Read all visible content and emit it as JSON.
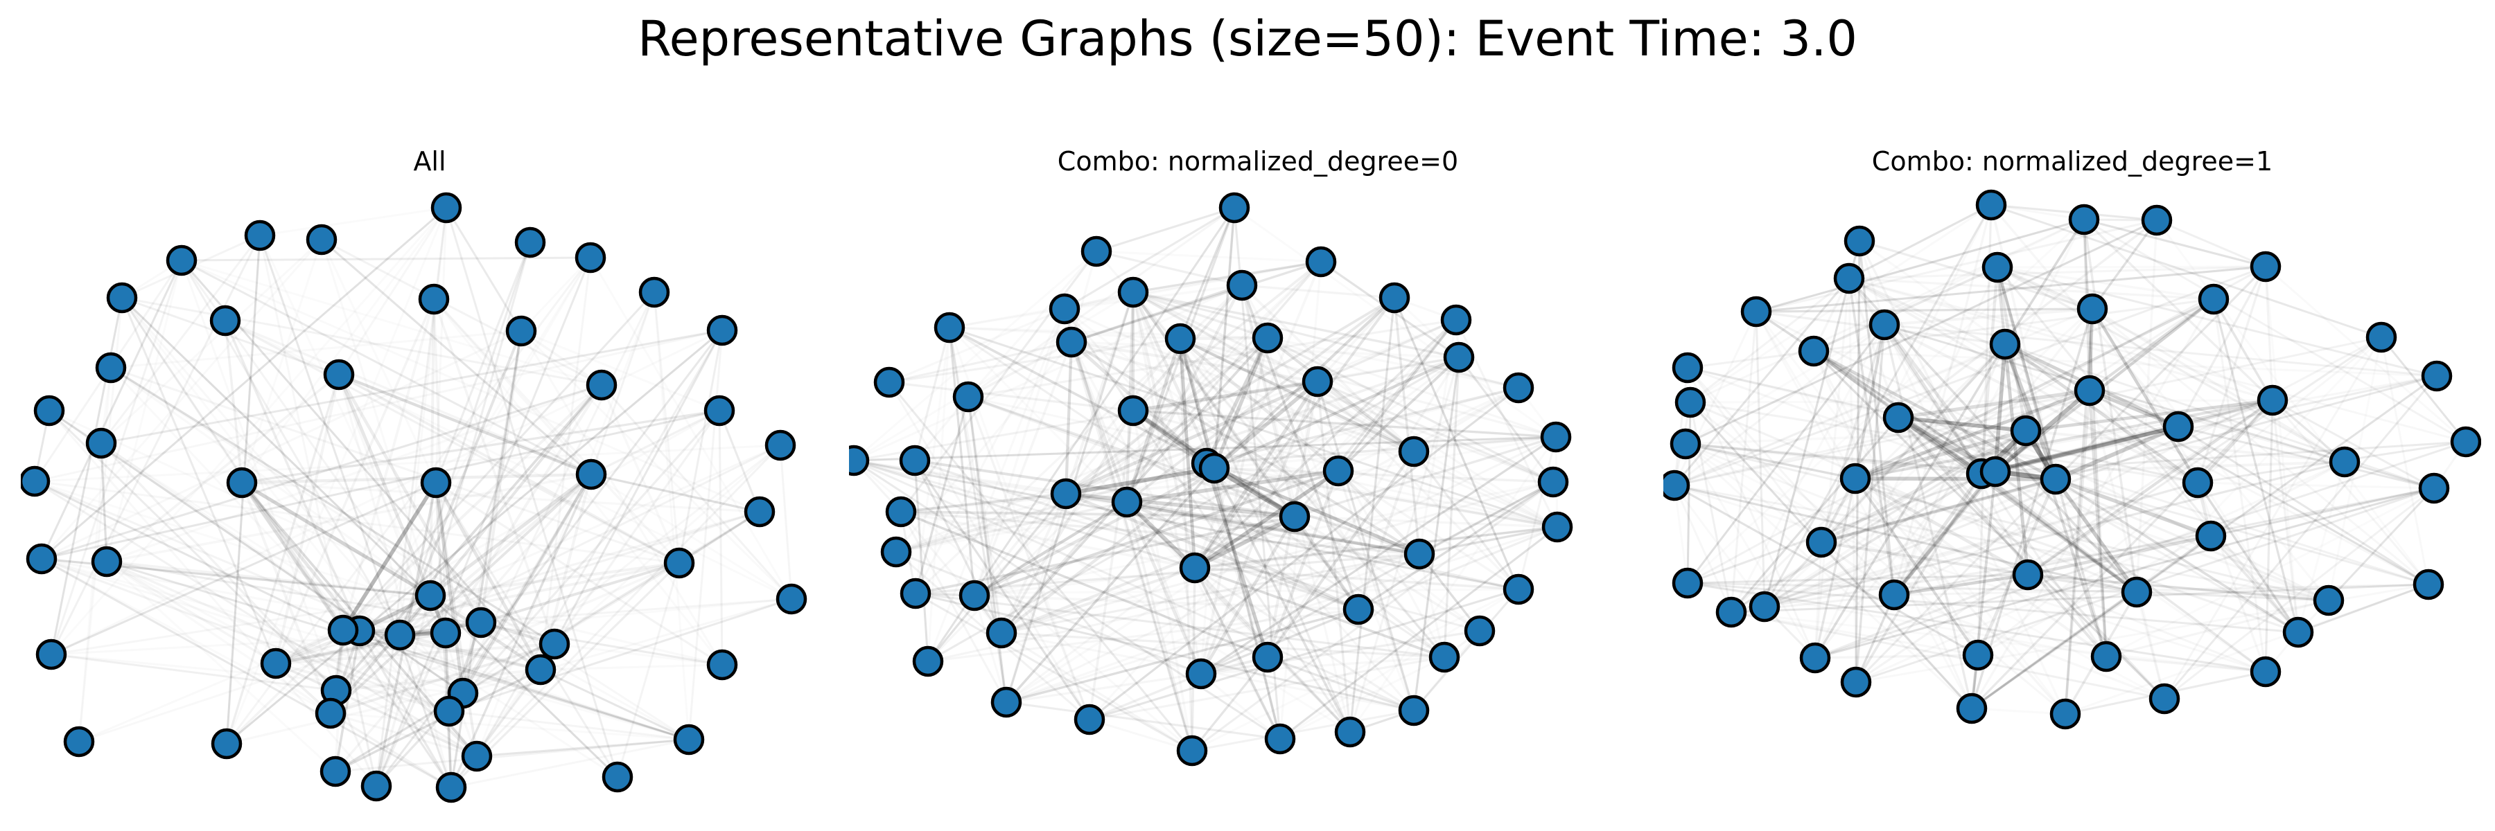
{
  "figure": {
    "title": "Representative Graphs (size=50): Event Time: 3.0"
  },
  "panels": [
    {
      "title": "All",
      "node_count": 50
    },
    {
      "title": "Combo: normalized_degree=0",
      "node_count": 50
    },
    {
      "title": "Combo: normalized_degree=1",
      "node_count": 50
    }
  ],
  "colors": {
    "node_fill": "#1f77b4",
    "node_edge": "#000000",
    "edge": "#000000"
  }
}
